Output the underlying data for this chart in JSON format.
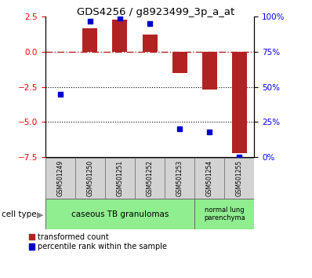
{
  "title": "GDS4256 / g8923499_3p_a_at",
  "samples": [
    "GSM501249",
    "GSM501250",
    "GSM501251",
    "GSM501252",
    "GSM501253",
    "GSM501254",
    "GSM501255"
  ],
  "red_values": [
    0.0,
    1.7,
    2.3,
    1.2,
    -1.5,
    -2.7,
    -7.2
  ],
  "blue_values": [
    -3.0,
    2.2,
    2.4,
    2.0,
    -5.5,
    -5.7,
    -7.5
  ],
  "ylim": [
    -7.5,
    2.5
  ],
  "yticks_red": [
    -7.5,
    -5.0,
    -2.5,
    0.0,
    2.5
  ],
  "yticks_blue_vals": [
    0,
    25,
    50,
    75,
    100
  ],
  "yticks_blue_pos": [
    -7.5,
    -5.0,
    -2.5,
    0.0,
    2.5
  ],
  "hlines": [
    -2.5,
    -5.0
  ],
  "hline_zero": 0.0,
  "bar_color": "#b22222",
  "dot_color": "#0000cc",
  "bar_width": 0.5,
  "legend_red": "transformed count",
  "legend_blue": "percentile rank within the sample",
  "cell_type_label": "cell type",
  "ct1_label": "caseous TB granulomas",
  "ct2_label": "normal lung\nparenchyma",
  "ct_color": "#90ee90",
  "sample_box_color": "#d3d3d3"
}
